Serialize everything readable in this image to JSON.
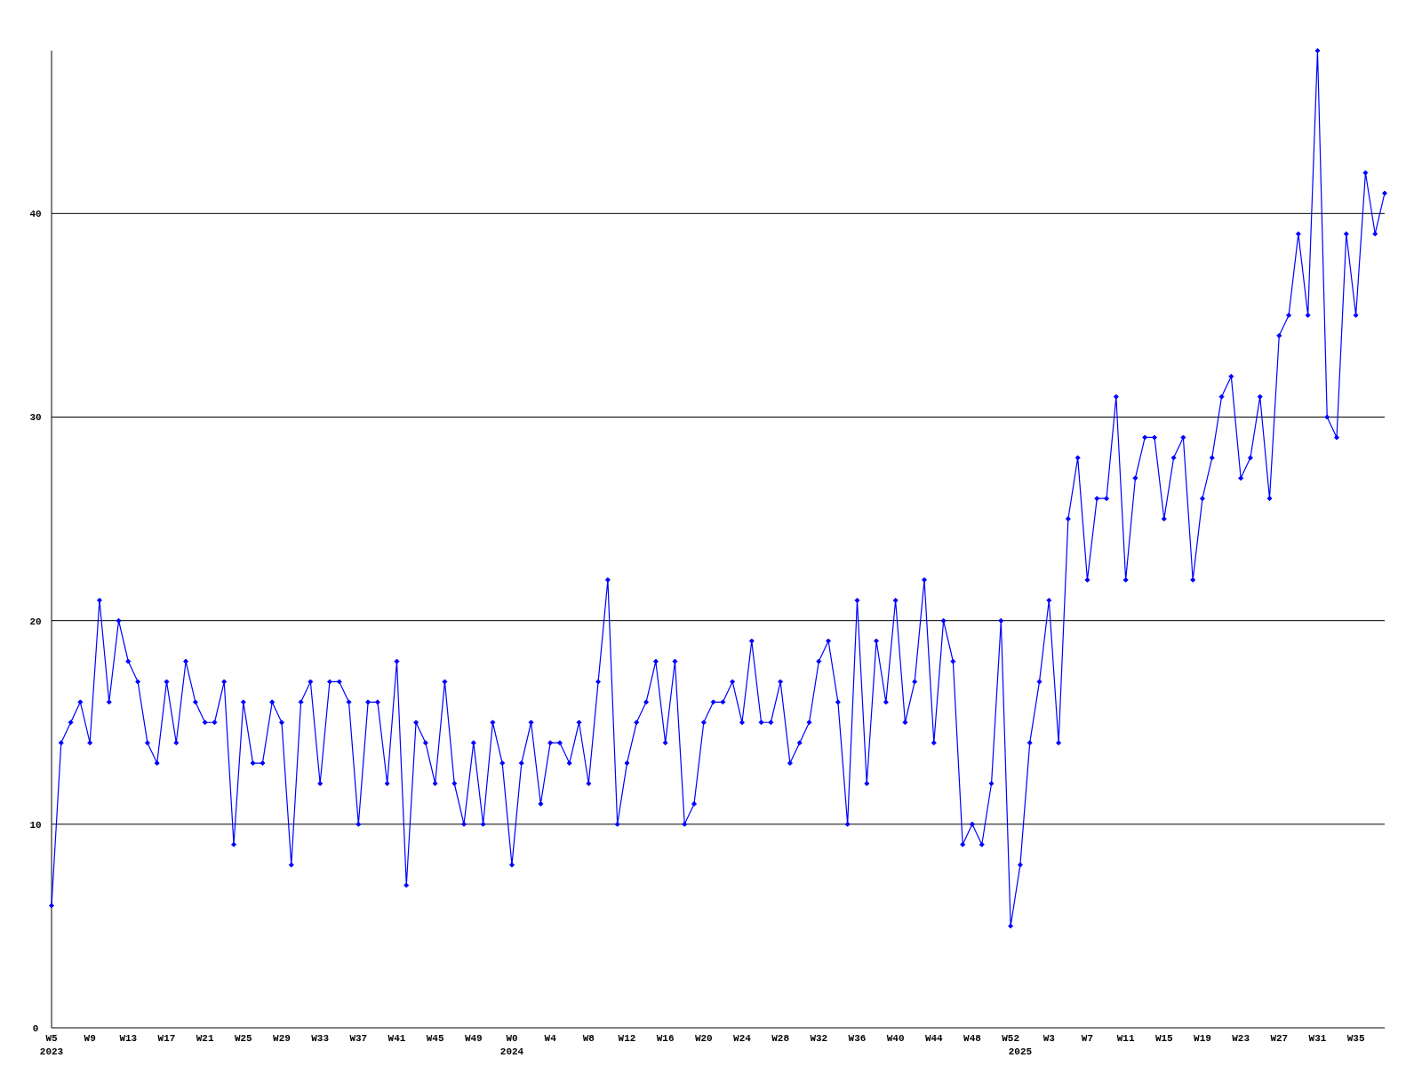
{
  "chart_data": {
    "type": "line",
    "categories": [
      "W5\n2023",
      null,
      null,
      null,
      "W9",
      null,
      null,
      null,
      "W13",
      null,
      null,
      null,
      "W17",
      null,
      null,
      null,
      "W21",
      null,
      null,
      null,
      "W25",
      null,
      null,
      null,
      "W29",
      null,
      null,
      null,
      "W33",
      null,
      null,
      null,
      "W37",
      null,
      null,
      null,
      "W41",
      null,
      null,
      null,
      "W45",
      null,
      null,
      null,
      "W49",
      null,
      null,
      null,
      "W0\n2024",
      null,
      null,
      null,
      "W4",
      null,
      null,
      null,
      "W8",
      null,
      null,
      null,
      "W12",
      null,
      null,
      null,
      "W16",
      null,
      null,
      null,
      "W20",
      null,
      null,
      null,
      "W24",
      null,
      null,
      null,
      "W28",
      null,
      null,
      null,
      "W32",
      null,
      null,
      null,
      "W36",
      null,
      null,
      null,
      "W40",
      null,
      null,
      null,
      "W44",
      null,
      null,
      null,
      "W48",
      null,
      null,
      null,
      "W52",
      "\n2025",
      null,
      null,
      "W3",
      null,
      null,
      null,
      "W7",
      null,
      null,
      null,
      "W11",
      null,
      null,
      null,
      "W15",
      null,
      null,
      null,
      "W19",
      null,
      null,
      null,
      "W23",
      null,
      null,
      null,
      "W27",
      null,
      null,
      null,
      "W31",
      null,
      null,
      null,
      "W35",
      null,
      null,
      null
    ],
    "series": [
      {
        "color": "#0000ff",
        "values": [
          6,
          14,
          15,
          16,
          14,
          21,
          16,
          20,
          18,
          17,
          14,
          13,
          17,
          14,
          18,
          16,
          15,
          15,
          17,
          9,
          16,
          13,
          13,
          16,
          15,
          8,
          16,
          17,
          12,
          17,
          17,
          16,
          10,
          16,
          16,
          12,
          18,
          7,
          15,
          14,
          12,
          17,
          12,
          10,
          14,
          10,
          15,
          13,
          8,
          13,
          15,
          11,
          14,
          14,
          13,
          15,
          12,
          17,
          22,
          10,
          13,
          15,
          16,
          18,
          14,
          18,
          10,
          11,
          15,
          16,
          16,
          17,
          15,
          19,
          15,
          15,
          17,
          13,
          14,
          15,
          18,
          19,
          16,
          10,
          21,
          12,
          19,
          16,
          21,
          15,
          17,
          22,
          14,
          20,
          18,
          9,
          10,
          9,
          12,
          20,
          5,
          8,
          14,
          17,
          21,
          14,
          25,
          28,
          22,
          26,
          26,
          31,
          22,
          27,
          29,
          29,
          25,
          28,
          29,
          22,
          26,
          28,
          31,
          32,
          27,
          28,
          31,
          26,
          34,
          35,
          39,
          35,
          48,
          30,
          29,
          39,
          35,
          42,
          39,
          41
        ]
      }
    ],
    "ylim": [
      0,
      48
    ],
    "yticks": [
      0,
      10,
      20,
      30,
      40
    ],
    "grid": "y",
    "marker": "diamond",
    "line_style": "solid"
  }
}
